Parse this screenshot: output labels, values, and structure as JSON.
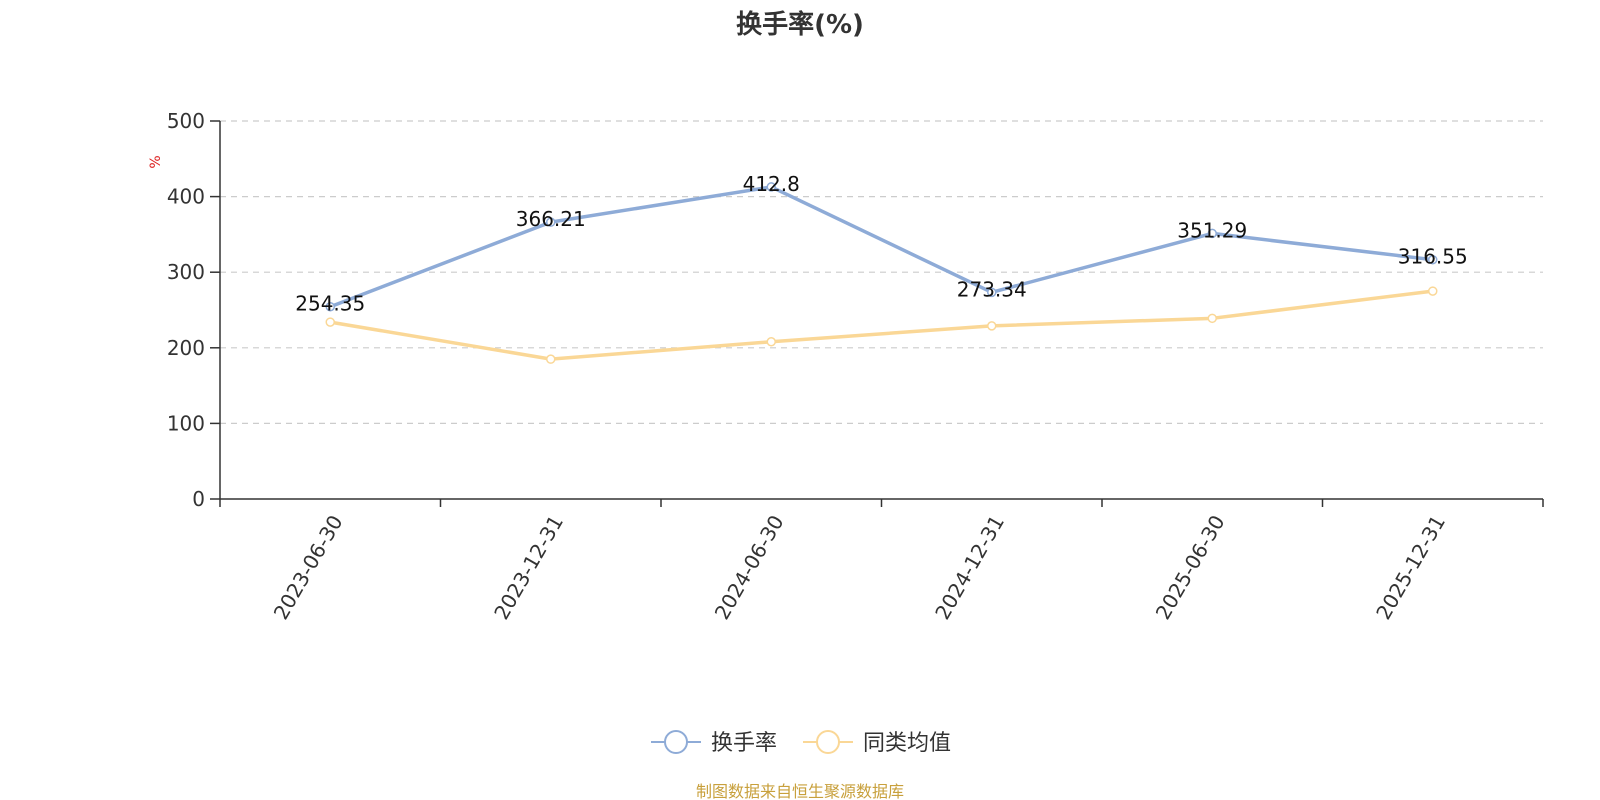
{
  "chart_data": {
    "type": "line",
    "title": "换手率(%)",
    "y_unit": "%",
    "ylim": [
      0,
      500
    ],
    "y_ticks": [
      "0",
      "100",
      "200",
      "300",
      "400",
      "500"
    ],
    "grid": true,
    "legend_position": "bottom-center",
    "categories": [
      "2023-06-30",
      "2023-12-31",
      "2024-06-30",
      "2024-12-31",
      "2025-06-30",
      "2025-12-31"
    ],
    "series": [
      {
        "name": "换手率",
        "color": "#8eabd7",
        "values": [
          254.35,
          366.21,
          412.8,
          273.34,
          351.29,
          316.55
        ],
        "value_labels": [
          "254.35",
          "366.21",
          "412.8",
          "273.34",
          "351.29",
          "316.55"
        ],
        "show_labels": true
      },
      {
        "name": "同类均值",
        "color": "#fad796",
        "values": [
          234,
          185,
          208,
          229,
          239,
          275
        ],
        "show_labels": false
      }
    ],
    "source": "制图数据来自恒生聚源数据库",
    "colors": {
      "axis": "#333333",
      "grid": "#cccccc",
      "unit": "#dd2222",
      "source": "#c8a03c"
    }
  }
}
